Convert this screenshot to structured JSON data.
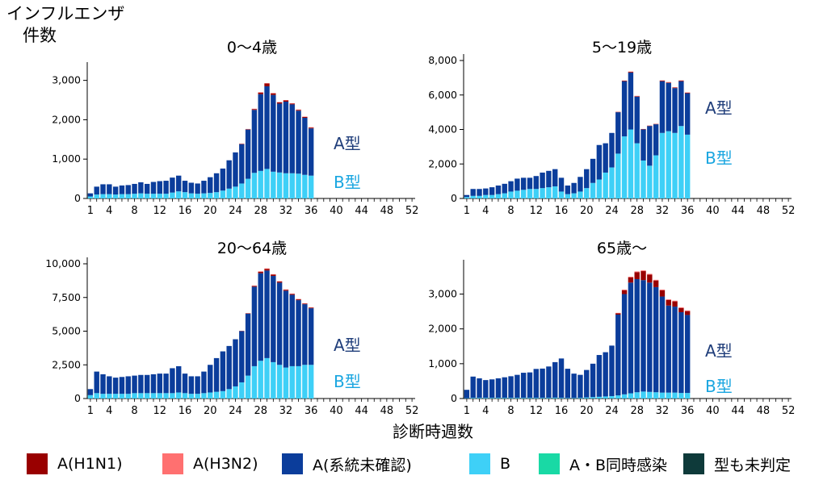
{
  "y_axis_title": [
    "インフルエンザ",
    "件数"
  ],
  "x_axis_title": "診断時週数",
  "colors": {
    "A(H1N1)": "#990000",
    "A(H3N2)": "#ff7070",
    "A(系統未確認)": "#0b3d9b",
    "B": "#3ed0f7",
    "A・B同時感染": "#19d9a5",
    "型も未判定": "#0e3a3a"
  },
  "legend": [
    {
      "label": "A(H1N1)",
      "color": "#990000"
    },
    {
      "label": "A(H3N2)",
      "color": "#ff7070"
    },
    {
      "label": "A(系統未確認)",
      "color": "#0b3d9b"
    },
    {
      "label": "B",
      "color": "#3ed0f7"
    },
    {
      "label": "A・B同時感染",
      "color": "#19d9a5"
    },
    {
      "label": "型も未判定",
      "color": "#0e3a3a"
    }
  ],
  "chart_data": [
    {
      "type": "bar",
      "stacked": true,
      "title": "0～4歳",
      "annotations": {
        "a_label": "A型",
        "b_label": "B型"
      },
      "x_ticks": [
        "1",
        "4",
        "8",
        "12",
        "16",
        "20",
        "24",
        "28",
        "32",
        "36",
        "40",
        "44",
        "48",
        "52"
      ],
      "y_ticks": [
        "0",
        "1,000",
        "2,000",
        "3,000"
      ],
      "ylim": [
        0,
        3300
      ],
      "weeks": [
        1,
        2,
        3,
        4,
        5,
        6,
        7,
        8,
        9,
        10,
        11,
        12,
        13,
        14,
        15,
        16,
        17,
        18,
        19,
        20,
        21,
        22,
        23,
        24,
        25,
        26,
        27,
        28,
        29,
        30,
        31,
        32,
        33,
        34,
        35,
        36
      ],
      "series": [
        {
          "name": "B",
          "values": [
            50,
            100,
            110,
            110,
            100,
            110,
            110,
            120,
            130,
            120,
            120,
            120,
            120,
            150,
            180,
            160,
            130,
            120,
            130,
            140,
            160,
            200,
            250,
            300,
            380,
            500,
            650,
            700,
            750,
            680,
            660,
            640,
            640,
            630,
            600,
            580
          ]
        },
        {
          "name": "A(系統未確認)",
          "values": [
            80,
            200,
            250,
            250,
            200,
            220,
            230,
            250,
            280,
            250,
            300,
            320,
            330,
            380,
            400,
            290,
            270,
            260,
            320,
            400,
            480,
            560,
            720,
            870,
            1000,
            1250,
            1600,
            1950,
            2100,
            1950,
            1750,
            1820,
            1750,
            1600,
            1450,
            1200
          ]
        },
        {
          "name": "A(H1N1)",
          "values": [
            0,
            0,
            0,
            0,
            0,
            0,
            0,
            0,
            0,
            0,
            0,
            0,
            0,
            0,
            0,
            0,
            0,
            0,
            0,
            0,
            0,
            0,
            0,
            0,
            10,
            10,
            20,
            40,
            70,
            40,
            30,
            30,
            20,
            20,
            20,
            20
          ]
        },
        {
          "name": "A(H3N2)",
          "values": [
            0,
            0,
            0,
            0,
            0,
            0,
            0,
            0,
            0,
            0,
            0,
            0,
            0,
            0,
            0,
            0,
            0,
            0,
            0,
            0,
            0,
            0,
            0,
            0,
            5,
            5,
            10,
            10,
            10,
            10,
            10,
            10,
            10,
            10,
            10,
            10
          ]
        }
      ]
    },
    {
      "type": "bar",
      "stacked": true,
      "title": "5～19歳",
      "annotations": {
        "a_label": "A型",
        "b_label": "B型"
      },
      "x_ticks": [
        "1",
        "4",
        "8",
        "12",
        "16",
        "20",
        "24",
        "28",
        "32",
        "36",
        "40",
        "44",
        "48",
        "52"
      ],
      "y_ticks": [
        "0",
        "2,000",
        "4,000",
        "6,000",
        "8,000"
      ],
      "ylim": [
        0,
        8000
      ],
      "weeks": [
        1,
        2,
        3,
        4,
        5,
        6,
        7,
        8,
        9,
        10,
        11,
        12,
        13,
        14,
        15,
        16,
        17,
        18,
        19,
        20,
        21,
        22,
        23,
        24,
        25,
        26,
        27,
        28,
        29,
        30,
        31,
        32,
        33,
        34,
        35,
        36
      ],
      "series": [
        {
          "name": "B",
          "values": [
            80,
            150,
            150,
            200,
            200,
            250,
            300,
            400,
            450,
            500,
            550,
            550,
            600,
            650,
            700,
            400,
            250,
            300,
            400,
            600,
            900,
            1100,
            1500,
            1800,
            2600,
            3600,
            4000,
            3200,
            2200,
            1900,
            2500,
            3800,
            3900,
            3800,
            4200,
            3700
          ]
        },
        {
          "name": "A(系統未確認)",
          "values": [
            120,
            400,
            400,
            380,
            450,
            500,
            550,
            600,
            700,
            700,
            650,
            750,
            900,
            950,
            1000,
            800,
            500,
            600,
            850,
            1100,
            1400,
            2000,
            1700,
            2000,
            2400,
            3200,
            3300,
            2700,
            1800,
            2300,
            1800,
            3000,
            2800,
            2600,
            2600,
            2400
          ]
        },
        {
          "name": "A(H1N1)",
          "values": [
            0,
            0,
            0,
            0,
            0,
            0,
            0,
            0,
            0,
            0,
            0,
            0,
            0,
            0,
            0,
            0,
            0,
            0,
            0,
            0,
            0,
            0,
            0,
            0,
            20,
            30,
            40,
            30,
            20,
            20,
            20,
            30,
            30,
            30,
            30,
            30
          ]
        },
        {
          "name": "A(H3N2)",
          "values": [
            0,
            0,
            0,
            0,
            0,
            0,
            0,
            0,
            0,
            0,
            0,
            0,
            0,
            0,
            0,
            0,
            0,
            0,
            0,
            0,
            0,
            0,
            0,
            0,
            10,
            10,
            20,
            20,
            10,
            10,
            10,
            20,
            20,
            20,
            20,
            20
          ]
        }
      ]
    },
    {
      "type": "bar",
      "stacked": true,
      "title": "20～64歳",
      "annotations": {
        "a_label": "A型",
        "b_label": "B型"
      },
      "x_ticks": [
        "1",
        "4",
        "8",
        "12",
        "16",
        "20",
        "24",
        "28",
        "32",
        "36",
        "40",
        "44",
        "48",
        "52"
      ],
      "y_ticks": [
        "0",
        "2,500",
        "5,000",
        "7,500",
        "10,000"
      ],
      "ylim": [
        0,
        10000
      ],
      "weeks": [
        1,
        2,
        3,
        4,
        5,
        6,
        7,
        8,
        9,
        10,
        11,
        12,
        13,
        14,
        15,
        16,
        17,
        18,
        19,
        20,
        21,
        22,
        23,
        24,
        25,
        26,
        27,
        28,
        29,
        30,
        31,
        32,
        33,
        34,
        35,
        36
      ],
      "series": [
        {
          "name": "B",
          "values": [
            250,
            400,
            350,
            350,
            350,
            350,
            350,
            400,
            400,
            400,
            400,
            400,
            400,
            400,
            450,
            400,
            350,
            350,
            400,
            450,
            500,
            550,
            700,
            900,
            1200,
            1700,
            2400,
            2800,
            3000,
            2700,
            2500,
            2300,
            2400,
            2400,
            2500,
            2500
          ]
        },
        {
          "name": "A(系統未確認)",
          "values": [
            450,
            1600,
            1450,
            1300,
            1200,
            1250,
            1300,
            1300,
            1350,
            1350,
            1400,
            1450,
            1450,
            1850,
            1950,
            1450,
            1300,
            1300,
            1600,
            2050,
            2500,
            2950,
            3200,
            3500,
            3800,
            4600,
            5900,
            6500,
            6500,
            6400,
            6100,
            5700,
            5300,
            4900,
            4500,
            4200
          ]
        },
        {
          "name": "A(H1N1)",
          "values": [
            0,
            0,
            0,
            0,
            0,
            0,
            0,
            0,
            0,
            0,
            0,
            0,
            0,
            0,
            0,
            0,
            0,
            0,
            0,
            0,
            0,
            0,
            0,
            0,
            20,
            30,
            60,
            100,
            120,
            100,
            80,
            70,
            60,
            60,
            50,
            50
          ]
        },
        {
          "name": "A(H3N2)",
          "values": [
            0,
            0,
            0,
            0,
            0,
            0,
            0,
            0,
            0,
            0,
            0,
            0,
            0,
            0,
            0,
            0,
            0,
            0,
            0,
            0,
            0,
            0,
            0,
            0,
            10,
            10,
            20,
            40,
            40,
            30,
            30,
            30,
            30,
            30,
            20,
            20
          ]
        }
      ]
    },
    {
      "type": "bar",
      "stacked": true,
      "title": "65歳～",
      "annotations": {
        "a_label": "A型",
        "b_label": "B型"
      },
      "x_ticks": [
        "1",
        "4",
        "8",
        "12",
        "16",
        "20",
        "24",
        "28",
        "32",
        "36",
        "40",
        "44",
        "48",
        "52"
      ],
      "y_ticks": [
        "0",
        "1,000",
        "2,000",
        "3,000"
      ],
      "ylim": [
        0,
        3800
      ],
      "weeks": [
        1,
        2,
        3,
        4,
        5,
        6,
        7,
        8,
        9,
        10,
        11,
        12,
        13,
        14,
        15,
        16,
        17,
        18,
        19,
        20,
        21,
        22,
        23,
        24,
        25,
        26,
        27,
        28,
        29,
        30,
        31,
        32,
        33,
        34,
        35,
        36
      ],
      "series": [
        {
          "name": "B",
          "values": [
            10,
            20,
            20,
            20,
            20,
            20,
            20,
            20,
            20,
            20,
            20,
            20,
            20,
            20,
            25,
            20,
            15,
            15,
            20,
            30,
            40,
            50,
            60,
            70,
            90,
            120,
            150,
            180,
            200,
            190,
            180,
            170,
            170,
            170,
            160,
            160
          ]
        },
        {
          "name": "A(系統未確認)",
          "values": [
            240,
            610,
            560,
            510,
            530,
            560,
            590,
            620,
            660,
            720,
            730,
            830,
            840,
            900,
            1020,
            1130,
            840,
            700,
            660,
            790,
            960,
            1200,
            1270,
            1450,
            2320,
            2880,
            3180,
            3250,
            3200,
            3140,
            3020,
            2760,
            2500,
            2470,
            2320,
            2240
          ]
        },
        {
          "name": "A(H1N1)",
          "values": [
            0,
            0,
            0,
            0,
            0,
            0,
            0,
            0,
            0,
            0,
            0,
            0,
            0,
            0,
            0,
            0,
            0,
            0,
            0,
            0,
            0,
            0,
            0,
            0,
            40,
            110,
            150,
            200,
            260,
            230,
            190,
            180,
            160,
            150,
            120,
            110
          ]
        },
        {
          "name": "A(H3N2)",
          "values": [
            0,
            0,
            0,
            0,
            0,
            0,
            0,
            0,
            0,
            0,
            0,
            0,
            0,
            0,
            0,
            0,
            0,
            0,
            0,
            0,
            0,
            0,
            0,
            0,
            10,
            20,
            20,
            20,
            20,
            20,
            20,
            20,
            20,
            20,
            20,
            20
          ]
        }
      ]
    }
  ]
}
